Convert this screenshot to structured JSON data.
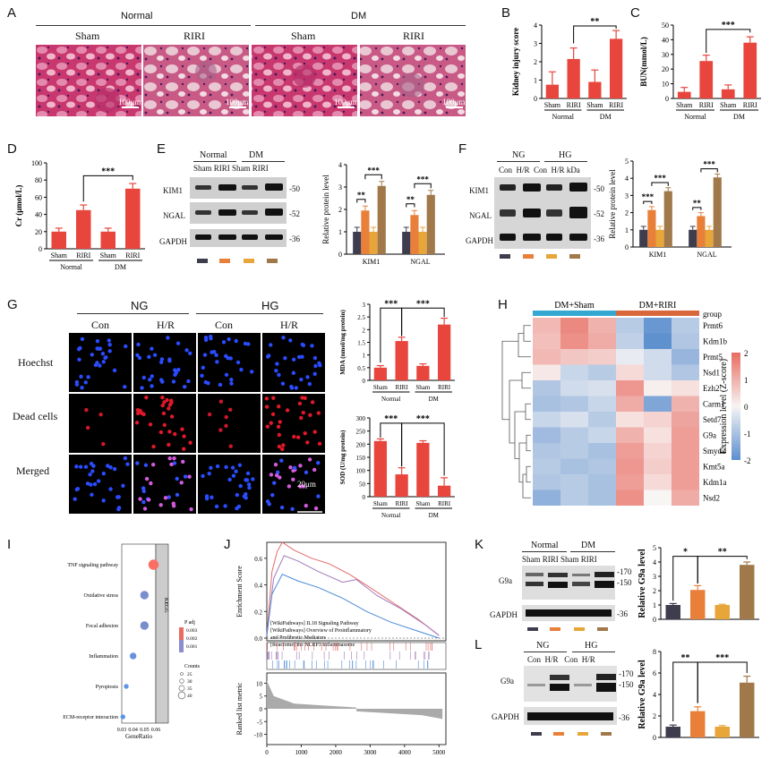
{
  "panel_letters": [
    "A",
    "B",
    "C",
    "D",
    "E",
    "F",
    "G",
    "H",
    "I",
    "J",
    "K",
    "L"
  ],
  "colors": {
    "bar_red": "#e8453c",
    "sham_dark": "#3d3d4e",
    "orange": "#e8803a",
    "lightorange": "#e8a53a",
    "brown": "#a0784a",
    "tissue": "#d84e82",
    "heat_red": "#e8796c",
    "heat_blue": "#5b8fcf"
  },
  "panelA": {
    "groups": [
      "Normal",
      "DM"
    ],
    "conditions": [
      "Sham",
      "RIRI",
      "Sham",
      "RIRI"
    ],
    "scale": [
      "100μm",
      "100μm",
      "100μm",
      "100μm"
    ]
  },
  "chart_data": [
    {
      "panel": "B",
      "type": "bar",
      "ylabel": "Kidney injury score",
      "categories": [
        "Sham",
        "RIRI",
        "Sham",
        "RIRI"
      ],
      "groups": [
        "Normal",
        "DM"
      ],
      "values": [
        0.75,
        2.15,
        0.9,
        3.25
      ],
      "errors": [
        0.7,
        0.6,
        0.65,
        0.45
      ],
      "yticks": [
        0,
        1,
        2,
        3,
        4
      ],
      "ylim": [
        0,
        4
      ],
      "significance": "**"
    },
    {
      "panel": "C",
      "type": "bar",
      "ylabel": "BUN(mmol/L)",
      "categories": [
        "Sham",
        "RIRI",
        "Sham",
        "RIRI"
      ],
      "groups": [
        "Normal",
        "DM"
      ],
      "values": [
        4.5,
        25.5,
        6.2,
        38
      ],
      "errors": [
        3,
        4,
        3,
        4
      ],
      "yticks": [
        0,
        10,
        20,
        30,
        40,
        50
      ],
      "ylim": [
        0,
        50
      ],
      "significance": "***"
    },
    {
      "panel": "D",
      "type": "bar",
      "ylabel": "Cr (μmol/L)",
      "categories": [
        "Sham",
        "RIRI",
        "Sham",
        "RIRI"
      ],
      "groups": [
        "Normal",
        "DM"
      ],
      "values": [
        20,
        45,
        20,
        70
      ],
      "errors": [
        4,
        6,
        4,
        6
      ],
      "yticks": [
        0,
        20,
        40,
        60,
        80,
        100
      ],
      "ylim": [
        0,
        100
      ],
      "significance": "***"
    },
    {
      "panel": "E",
      "type": "bar",
      "ylabel": "Relative protein level",
      "categories": [
        "KIM1",
        "NGAL"
      ],
      "values": [
        [
          1.0,
          1.95,
          1.0,
          3.05
        ],
        [
          1.0,
          1.75,
          1.0,
          2.65
        ]
      ],
      "yticks": [
        0,
        1,
        2,
        3,
        4
      ],
      "ylim": [
        0,
        4
      ],
      "significance": [
        "**",
        "***",
        "**",
        "***"
      ]
    },
    {
      "panel": "F",
      "type": "bar",
      "ylabel": "Relative protein level",
      "categories": [
        "KIM1",
        "NGAL"
      ],
      "values": [
        [
          1.0,
          2.15,
          1.0,
          3.25
        ],
        [
          1.0,
          1.8,
          1.0,
          4.05
        ]
      ],
      "yticks": [
        0,
        1,
        2,
        3,
        4,
        5
      ],
      "ylim": [
        0,
        5
      ],
      "significance": [
        "***",
        "***",
        "**",
        "***"
      ]
    },
    {
      "panel": "G",
      "type": "bar",
      "ylabel": "MDA (nmol/mg protein)",
      "categories": [
        "Sham",
        "RIRI",
        "Sham",
        "RIRI"
      ],
      "groups": [
        "Normal",
        "DM"
      ],
      "values": [
        0.5,
        1.55,
        0.57,
        2.2
      ],
      "errors": [
        0.08,
        0.15,
        0.08,
        0.25
      ],
      "yticks": [
        0.0,
        0.5,
        1.0,
        1.5,
        2.0,
        2.5,
        3.0
      ],
      "ylim": [
        0,
        3
      ],
      "significance": [
        "***",
        "***"
      ]
    },
    {
      "panel": "G2",
      "type": "bar",
      "ylabel": "SOD (U/mg protein)",
      "categories": [
        "Sham",
        "RIRI",
        "Sham",
        "RIRI"
      ],
      "groups": [
        "Normal",
        "DM"
      ],
      "values": [
        212,
        85,
        205,
        42
      ],
      "errors": [
        8,
        25,
        8,
        30
      ],
      "yticks": [
        0,
        50,
        100,
        150,
        200,
        250,
        300
      ],
      "ylim": [
        0,
        300
      ],
      "significance": [
        "***",
        "***"
      ]
    },
    {
      "panel": "K",
      "type": "bar",
      "ylabel": "Relative G9a level",
      "categories": [
        "Sham",
        "RIRI",
        "Sham",
        "RIRI"
      ],
      "values": [
        1.0,
        2.05,
        1.0,
        3.8
      ],
      "errors": [
        0.1,
        0.3,
        0.05,
        0.2
      ],
      "yticks": [
        0,
        1,
        2,
        3,
        4,
        5
      ],
      "ylim": [
        0,
        5
      ],
      "significance": [
        "*",
        "**"
      ]
    },
    {
      "panel": "L",
      "type": "bar",
      "ylabel": "Relative G9a level",
      "categories": [
        "Con",
        "H/R",
        "Con",
        "H/R"
      ],
      "values": [
        1.0,
        2.45,
        1.0,
        5.1
      ],
      "errors": [
        0.15,
        0.4,
        0.1,
        0.6
      ],
      "yticks": [
        0,
        2,
        4,
        6,
        8
      ],
      "ylim": [
        0,
        8
      ],
      "significance": [
        "**",
        "***"
      ]
    },
    {
      "panel": "I",
      "type": "scatter",
      "xlabel": "GeneRatio",
      "xticks": [
        0.03,
        0.04,
        0.05,
        0.06
      ],
      "xlim": [
        0.03,
        0.06
      ],
      "categories": [
        "TNF signaling pathway",
        "Oxidative stress",
        "Focal adhesion",
        "Inflammation",
        "Pyroptosis",
        "ECM-receptor interaction"
      ],
      "x": [
        0.058,
        0.05,
        0.05,
        0.04,
        0.034,
        0.031
      ],
      "size": [
        40,
        35,
        35,
        30,
        25,
        25
      ],
      "padj": [
        0.004,
        0.0012,
        0.0012,
        0.0008,
        0.0006,
        0.0005
      ],
      "legend_title": "P adj",
      "legend_ticks": [
        "0.003",
        "0.002",
        "0.001"
      ],
      "size_title": "Counts",
      "size_ticks": [
        "25",
        "30",
        "35",
        "40"
      ],
      "strip": "KEGG"
    },
    {
      "panel": "J",
      "type": "line",
      "ylabel": "Enrichment Score",
      "ylabel2": "Ranked list metric",
      "xlabel": "Rank in Ordered Dataset",
      "yticks": [
        0.0,
        0.2,
        0.4,
        0.6
      ],
      "yticks2": [
        -10,
        -5,
        0,
        5,
        10
      ],
      "xticks": [
        0,
        1000,
        2000,
        3000,
        4000,
        5000
      ],
      "legend": [
        "[WikiPathways] IL18 Signaling Pathway",
        "[WikiPathways] Overview of Proinflammatory",
        "and Profibrotic Mediators",
        "[Reactome] the NLRP3 Inflammasome"
      ]
    },
    {
      "panel": "H",
      "type": "heatmap",
      "columns": [
        "DM+Sham",
        "DM+RIRI"
      ],
      "row_header": "group",
      "rows": [
        "Prmt6",
        "Kdm1b",
        "Prmt5",
        "Nsd1",
        "Ezh2",
        "Carm1",
        "Setd7",
        "G9a",
        "Smyd2",
        "Kmt5a",
        "Kdm1a",
        "Nsd2"
      ],
      "values": [
        [
          0.9,
          1.6,
          1.0,
          -0.8,
          -1.8,
          -0.8
        ],
        [
          0.8,
          1.5,
          1.1,
          -0.7,
          -1.9,
          -0.9
        ],
        [
          0.9,
          0.7,
          0.6,
          -0.2,
          -0.5,
          -1.2
        ],
        [
          0.2,
          -0.6,
          -0.8,
          0.4,
          -0.5,
          -0.9
        ],
        [
          -0.9,
          -0.5,
          -0.4,
          1.4,
          0.1,
          0.3
        ],
        [
          -1.0,
          -0.9,
          -0.6,
          1.1,
          -1.5,
          1.0
        ],
        [
          -0.6,
          -0.4,
          -0.8,
          0.3,
          0.5,
          1.2
        ],
        [
          -1.1,
          -0.8,
          -0.6,
          1.0,
          0.3,
          1.3
        ],
        [
          -0.9,
          -0.8,
          -1.0,
          1.3,
          0.5,
          1.3
        ],
        [
          -0.8,
          -1.0,
          -0.9,
          1.4,
          0.6,
          1.3
        ],
        [
          -0.9,
          -0.8,
          -1.0,
          1.3,
          0.4,
          1.3
        ],
        [
          -1.3,
          -0.8,
          -1.0,
          1.5,
          0.0,
          1.1
        ]
      ],
      "scale_label": "Expression level (Z-score)",
      "scale_ticks": [
        "2",
        "1",
        "0",
        "-1",
        "-2"
      ]
    }
  ],
  "panelE": {
    "groups": [
      "Normal",
      "DM"
    ],
    "cols": [
      "Sham",
      "RIRI",
      "Sham",
      "RIRI"
    ],
    "rows": [
      "KIM1",
      "NGAL",
      "GAPDH"
    ],
    "kda": [
      "-50",
      "-52",
      "-36"
    ]
  },
  "panelF": {
    "groups": [
      "NG",
      "HG"
    ],
    "cols": [
      "Con",
      "H/R",
      "Con",
      "H/R",
      "kDa"
    ],
    "rows": [
      "KIM1",
      "NGAL",
      "GAPDH"
    ],
    "kda": [
      "-50",
      "-52",
      "-36"
    ]
  },
  "panelG": {
    "groups": [
      "NG",
      "HG"
    ],
    "cols": [
      "Con",
      "H/R",
      "Con",
      "H/R"
    ],
    "rows": [
      "Hoechst",
      "Dead cells",
      "Merged"
    ],
    "scale": "20μm"
  },
  "panelK": {
    "groups": [
      "Normal",
      "DM"
    ],
    "cols": [
      "Sham",
      "RIRI",
      "Sham",
      "RIRI"
    ],
    "rows": [
      "G9a",
      "GAPDH"
    ],
    "kda": [
      "-170",
      "-150",
      "-36"
    ]
  },
  "panelL": {
    "groups": [
      "NG",
      "HG"
    ],
    "cols": [
      "Con",
      "H/R",
      "Con",
      "H/R"
    ],
    "rows": [
      "G9a",
      "GAPDH"
    ],
    "kda": [
      "-170",
      "-150",
      "-36"
    ]
  },
  "group_labels": {
    "normal": "Normal",
    "dm": "DM",
    "kda": "kDa"
  }
}
